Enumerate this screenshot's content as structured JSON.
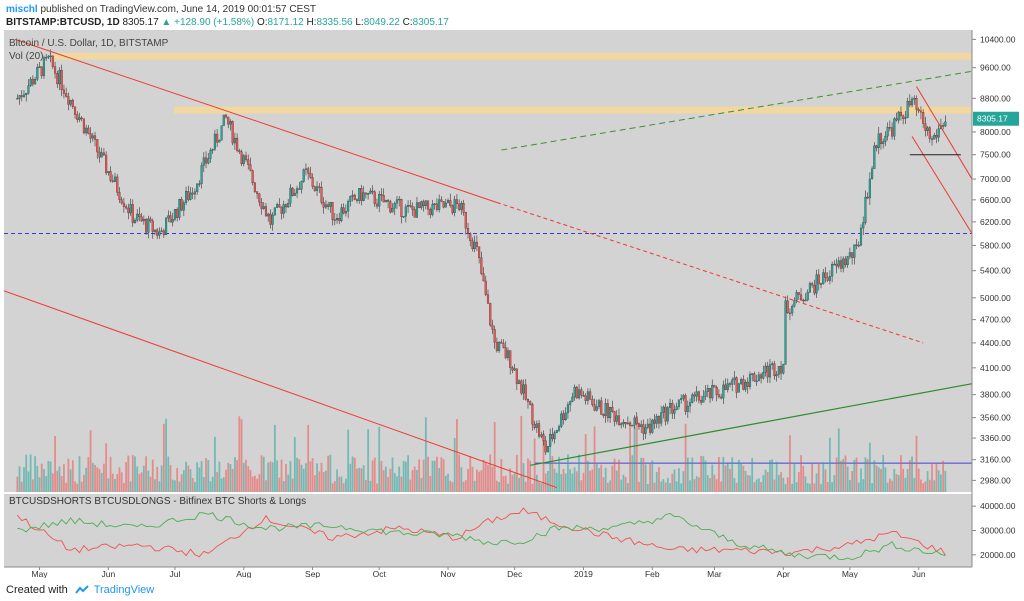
{
  "header": {
    "author": "mischl",
    "published_text": "published on TradingView.com, June 14, 2019 00:01:57 CEST",
    "symbol": "BITSTAMP:BTCUSD, 1D",
    "last": "8305.17",
    "change": "▲ +128.90 (+1.58%)",
    "open_label": "O:",
    "open": "8171.12",
    "high_label": "H:",
    "high": "8335.56",
    "low_label": "L:",
    "low": "8049.22",
    "close_label": "C:",
    "close": "8305.17"
  },
  "footer": {
    "created_text": "Created with",
    "brand": "TradingView",
    "logo_icon": "tradingview-logo-icon"
  },
  "colors": {
    "up": "#26a69a",
    "down": "#ef5350",
    "band": "#f5d89a",
    "trend_red": "#ee3a2e",
    "trend_green": "#2e8b2e",
    "dash_green": "#3f8f2f",
    "dash_blue": "#3a3acf",
    "support_blue": "#4040dd",
    "longs_green": "#4caf50",
    "shorts_red": "#ef5350"
  },
  "chart_data": [
    {
      "type": "candlestick",
      "title": "Bitcoin / U.S. Dollar, 1D, BITSTAMP",
      "volume_label": "Vol (20)",
      "last_price_label": "8305.17",
      "y_scale": "log",
      "ylim": [
        2900,
        10500
      ],
      "y_ticks": [
        2980,
        3160,
        3360,
        3560,
        3800,
        4100,
        4400,
        4700,
        5000,
        5400,
        5800,
        6200,
        6600,
        7000,
        7500,
        8000,
        8800,
        9600,
        10400
      ],
      "y_tick_labels": [
        "2980.00",
        "3160.00",
        "3360.00",
        "3560.00",
        "3800.00",
        "4100.00",
        "4400.00",
        "4700.00",
        "5000.00",
        "5400.00",
        "5800.00",
        "6200.00",
        "6600.00",
        "7000.00",
        "7500.00",
        "8000.00",
        "8800.00",
        "9600.00",
        "10400.00"
      ],
      "x_ticks": [
        "May",
        "Jun",
        "Jul",
        "Aug",
        "Sep",
        "Oct",
        "Nov",
        "Dec",
        "2019",
        "Feb",
        "Mar",
        "Apr",
        "May",
        "Jun"
      ],
      "grid": false,
      "series_closes_approx": {
        "x": [
          "2018-04-21",
          "2018-05-05",
          "2018-05-10",
          "2018-05-29",
          "2018-06-12",
          "2018-06-24",
          "2018-07-09",
          "2018-07-24",
          "2018-08-13",
          "2018-08-29",
          "2018-09-11",
          "2018-09-23",
          "2018-10-14",
          "2018-11-06",
          "2018-11-14",
          "2018-11-22",
          "2018-11-29",
          "2018-12-15",
          "2018-12-28",
          "2019-01-09",
          "2019-01-30",
          "2019-02-09",
          "2019-03-05",
          "2019-04-01",
          "2019-04-02",
          "2019-04-23",
          "2019-05-04",
          "2019-05-13",
          "2019-05-20",
          "2019-05-29",
          "2019-06-07",
          "2019-06-13"
        ],
        "y": [
          8800,
          9800,
          9300,
          7400,
          6300,
          6000,
          6800,
          8300,
          6200,
          7100,
          6300,
          6700,
          6400,
          6500,
          5700,
          4400,
          4200,
          3250,
          3850,
          3650,
          3450,
          3650,
          3850,
          4150,
          4850,
          5400,
          5700,
          7800,
          8100,
          8700,
          7800,
          8305
        ]
      },
      "horizontal_bands": [
        9900,
        8500
      ],
      "horizontal_lines": [
        {
          "style": "dashed",
          "value": 6000
        },
        {
          "style": "solid",
          "value": 3130
        }
      ]
    },
    {
      "type": "line",
      "title": "BTCUSDSHORTS BTCUSDLONGS - Bitfinex BTC Shorts & Longs",
      "ylim": [
        15000,
        45000
      ],
      "y_ticks": [
        20000,
        30000,
        40000
      ],
      "y_tick_labels": [
        "20000.00",
        "30000.00",
        "40000.00"
      ],
      "series": [
        {
          "name": "BTCUSDSHORTS",
          "color": "#ef5350",
          "x": [
            "2018-04-21",
            "2018-05-15",
            "2018-06-15",
            "2018-07-15",
            "2018-08-10",
            "2018-09-10",
            "2018-10-10",
            "2018-11-05",
            "2018-11-20",
            "2018-12-05",
            "2018-12-20",
            "2019-01-15",
            "2019-02-10",
            "2019-03-10",
            "2019-04-05",
            "2019-05-01",
            "2019-05-20",
            "2019-06-13"
          ],
          "values": [
            36000,
            22000,
            24000,
            20000,
            35000,
            27000,
            31000,
            27000,
            34000,
            38000,
            33000,
            27000,
            22000,
            22000,
            21000,
            24000,
            29000,
            21000
          ]
        },
        {
          "name": "BTCUSDLONGS",
          "color": "#4caf50",
          "x": [
            "2018-04-21",
            "2018-05-15",
            "2018-06-15",
            "2018-07-15",
            "2018-08-10",
            "2018-09-10",
            "2018-10-10",
            "2018-11-05",
            "2018-11-20",
            "2018-12-05",
            "2018-12-20",
            "2019-01-15",
            "2019-02-10",
            "2019-03-10",
            "2019-04-05",
            "2019-05-01",
            "2019-05-20",
            "2019-06-13"
          ],
          "values": [
            30000,
            34000,
            31000,
            37000,
            31000,
            32000,
            29000,
            28000,
            25000,
            26000,
            31000,
            31000,
            36000,
            25000,
            20000,
            19000,
            24000,
            20000
          ]
        }
      ]
    }
  ]
}
